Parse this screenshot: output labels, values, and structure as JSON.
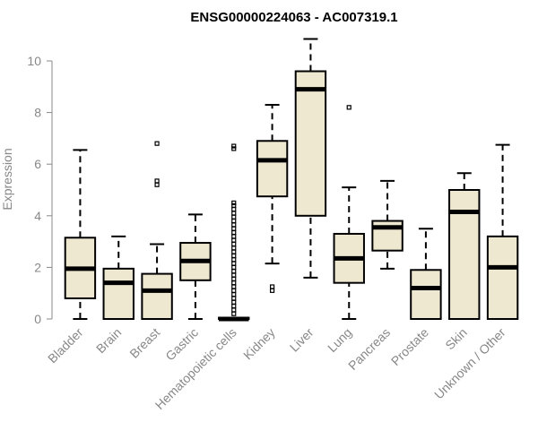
{
  "chart_data": {
    "type": "box",
    "title": "ENSG00000224063 - AC007319.1",
    "xlabel": "",
    "ylabel": "Expression",
    "ylim": [
      0,
      10.5
    ],
    "yticks": [
      "0",
      "2",
      "4",
      "6",
      "8",
      "10"
    ],
    "grid": false,
    "box_fill": "#efe8d0",
    "categories": [
      "Bladder",
      "Brain",
      "Breast",
      "Gastric",
      "Hematopoietic cells",
      "Kidney",
      "Liver",
      "Lung",
      "Pancreas",
      "Prostate",
      "Skin",
      "Unknown / Other"
    ],
    "series": [
      {
        "min": 0.0,
        "q1": 0.8,
        "median": 1.95,
        "q3": 3.15,
        "max": 6.55,
        "outliers": []
      },
      {
        "min": 0.0,
        "q1": 0.0,
        "median": 1.4,
        "q3": 1.95,
        "max": 3.2,
        "outliers": []
      },
      {
        "min": 0.0,
        "q1": 0.0,
        "median": 1.1,
        "q3": 1.75,
        "max": 2.9,
        "outliers": [
          5.2,
          5.35,
          6.8
        ]
      },
      {
        "min": 0.0,
        "q1": 1.5,
        "median": 2.25,
        "q3": 2.95,
        "max": 4.05,
        "outliers": []
      },
      {
        "min": 0.0,
        "q1": 0.0,
        "median": 0.0,
        "q3": 0.05,
        "max": 0.05,
        "outliers": [
          0.2,
          0.35,
          0.5,
          0.65,
          0.8,
          0.95,
          1.1,
          1.25,
          1.4,
          1.55,
          1.7,
          1.85,
          2.0,
          2.15,
          2.3,
          2.45,
          2.6,
          2.75,
          2.9,
          3.05,
          3.2,
          3.35,
          3.5,
          3.65,
          3.8,
          3.95,
          4.1,
          4.25,
          4.4,
          4.5,
          6.6,
          6.7
        ]
      },
      {
        "min": 2.15,
        "q1": 4.75,
        "median": 6.15,
        "q3": 6.9,
        "max": 8.3,
        "outliers": [
          1.1,
          1.25
        ]
      },
      {
        "min": 1.6,
        "q1": 4.0,
        "median": 8.9,
        "q3": 9.6,
        "max": 10.85,
        "outliers": []
      },
      {
        "min": 0.0,
        "q1": 1.4,
        "median": 2.35,
        "q3": 3.3,
        "max": 5.1,
        "outliers": [
          8.2
        ]
      },
      {
        "min": 1.95,
        "q1": 2.65,
        "median": 3.55,
        "q3": 3.8,
        "max": 5.35,
        "outliers": []
      },
      {
        "min": 0.0,
        "q1": 0.0,
        "median": 1.2,
        "q3": 1.9,
        "max": 3.5,
        "outliers": []
      },
      {
        "min": 0.0,
        "q1": 0.0,
        "median": 4.15,
        "q3": 5.0,
        "max": 5.65,
        "outliers": []
      },
      {
        "min": 0.0,
        "q1": 0.0,
        "median": 2.0,
        "q3": 3.2,
        "max": 6.75,
        "outliers": []
      }
    ]
  }
}
